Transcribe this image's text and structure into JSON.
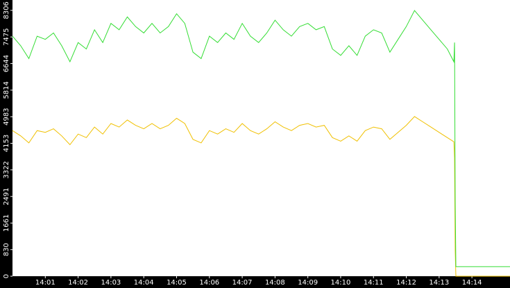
{
  "chart_data": {
    "type": "line",
    "x": [
      0,
      0.25,
      0.5,
      0.75,
      1,
      1.25,
      1.5,
      1.75,
      2,
      2.25,
      2.5,
      2.75,
      3,
      3.25,
      3.5,
      3.75,
      4,
      4.25,
      4.5,
      4.75,
      5,
      5.25,
      5.5,
      5.75,
      6,
      6.25,
      6.5,
      6.75,
      7,
      7.25,
      7.5,
      7.75,
      8,
      8.25,
      8.5,
      8.75,
      9,
      9.25,
      9.5,
      9.75,
      10,
      10.25,
      10.5,
      10.75,
      11,
      11.25,
      11.5,
      11.75,
      12,
      12.25,
      12.5,
      12.75,
      13,
      13.25,
      13.45,
      13.47,
      13.49,
      13.51,
      15.16
    ],
    "series": [
      {
        "color": "#33dd33",
        "values": [
          7500,
          7200,
          6800,
          7500,
          7400,
          7600,
          7200,
          6700,
          7300,
          7100,
          7700,
          7300,
          7900,
          7700,
          8100,
          7800,
          7600,
          7900,
          7600,
          7800,
          8200,
          7900,
          7000,
          6800,
          7500,
          7300,
          7600,
          7400,
          7900,
          7500,
          7300,
          7600,
          8000,
          7700,
          7500,
          7800,
          7900,
          7700,
          7800,
          7100,
          6900,
          7200,
          6900,
          7500,
          7700,
          7600,
          7000,
          7400,
          7800,
          8300,
          8000,
          7700,
          7400,
          7100,
          6700,
          7300,
          2330,
          300,
          300
        ]
      },
      {
        "color": "#f0c000",
        "values": [
          4550,
          4385,
          4165,
          4550,
          4495,
          4605,
          4385,
          4110,
          4440,
          4330,
          4660,
          4440,
          4770,
          4660,
          4880,
          4715,
          4605,
          4770,
          4605,
          4715,
          4935,
          4770,
          4275,
          4165,
          4550,
          4440,
          4605,
          4495,
          4770,
          4550,
          4440,
          4605,
          4825,
          4660,
          4550,
          4715,
          4770,
          4660,
          4715,
          4330,
          4220,
          4385,
          4220,
          4550,
          4660,
          4605,
          4275,
          4495,
          4715,
          4990,
          4825,
          4660,
          4495,
          4330,
          4200,
          3700,
          800,
          0,
          0
        ]
      }
    ],
    "xlim": [
      0,
      15.16
    ],
    "xticks": [
      {
        "value": 1,
        "label": "14:01"
      },
      {
        "value": 2,
        "label": "14:02"
      },
      {
        "value": 3,
        "label": "14:03"
      },
      {
        "value": 4,
        "label": "14:04"
      },
      {
        "value": 5,
        "label": "14:05"
      },
      {
        "value": 6,
        "label": "14:06"
      },
      {
        "value": 7,
        "label": "14:07"
      },
      {
        "value": 8,
        "label": "14:08"
      },
      {
        "value": 9,
        "label": "14:09"
      },
      {
        "value": 10,
        "label": "14:10"
      },
      {
        "value": 11,
        "label": "14:11"
      },
      {
        "value": 12,
        "label": "14:12"
      },
      {
        "value": 13,
        "label": "14:13"
      },
      {
        "value": 14,
        "label": "14:14"
      }
    ],
    "ylim": [
      0,
      8630
    ],
    "yticks": [
      0,
      830,
      1661,
      2491,
      3322,
      4153,
      4983,
      5814,
      6644,
      7475,
      8306
    ]
  }
}
